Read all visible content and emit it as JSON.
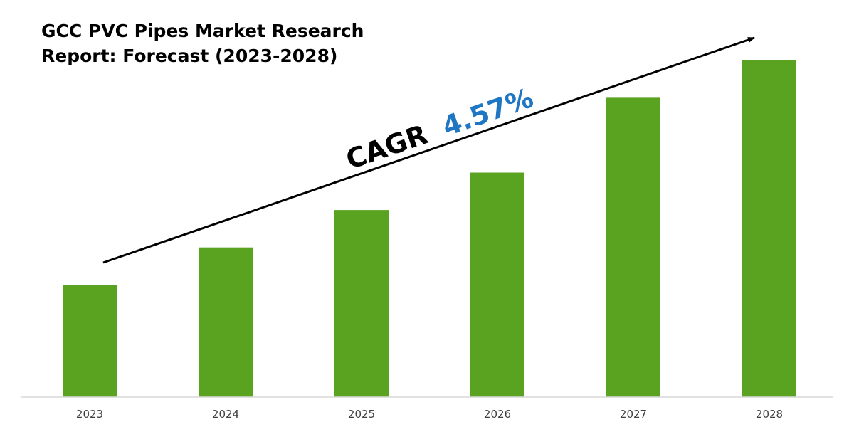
{
  "colors": {
    "bar": "#5aa321",
    "axis": "#d9d9d9",
    "arrow": "#000000",
    "cagr_label": "#000000",
    "cagr_value": "#1f77c4"
  },
  "chart_data": {
    "type": "bar",
    "title_lines": [
      "GCC PVC Pipes Market Research",
      "Report: Forecast (2023-2028)"
    ],
    "categories": [
      "2023",
      "2024",
      "2025",
      "2026",
      "2027",
      "2028"
    ],
    "values": [
      33,
      44,
      55,
      66,
      88,
      99
    ],
    "ylim": [
      0,
      100
    ],
    "grid": false,
    "xlabel": "",
    "ylabel": "",
    "annotation": {
      "label": "CAGR",
      "value": "4.57%",
      "arrow": "upward trend arrow from first to last bar"
    }
  }
}
